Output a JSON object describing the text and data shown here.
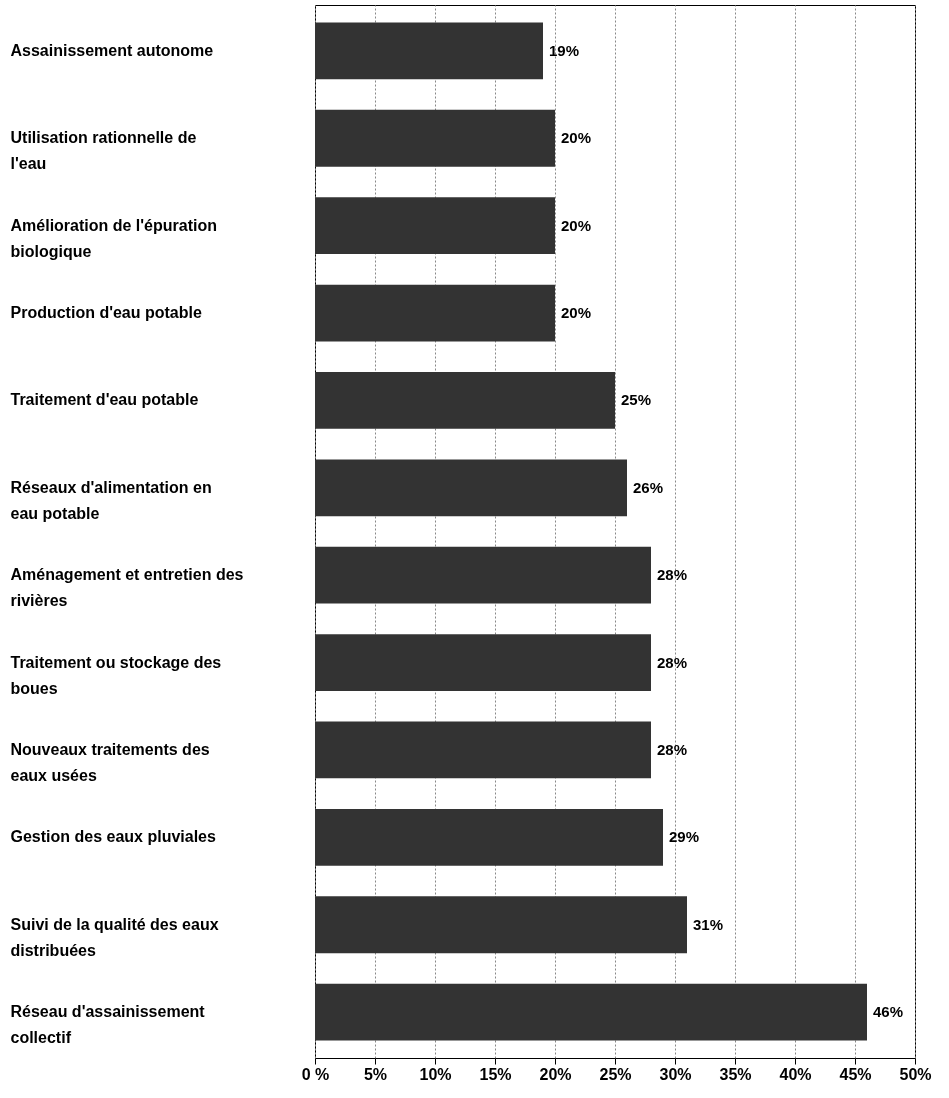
{
  "chart_data": {
    "type": "bar",
    "orientation": "horizontal",
    "categories": [
      "Assainissement autonome",
      "Utilisation rationnelle de l'eau",
      "Amélioration de l'épuration biologique",
      "Production d'eau potable",
      "Traitement d'eau potable",
      "Réseaux d'alimentation en eau potable",
      "Aménagement et entretien des rivières",
      "Traitement ou stockage des boues",
      "Nouveaux traitements des eaux usées",
      "Gestion des eaux pluviales",
      "Suivi de la qualité des eaux distribuées",
      "Réseau d'assainissement collectif"
    ],
    "values": [
      19,
      20,
      20,
      20,
      25,
      26,
      28,
      28,
      28,
      29,
      31,
      46
    ],
    "value_labels": [
      "19%",
      "20%",
      "20%",
      "20%",
      "25%",
      "26%",
      "28%",
      "28%",
      "28%",
      "29%",
      "31%",
      "46%"
    ],
    "color": "#333333",
    "xlim": [
      0,
      50
    ],
    "xticks": [
      {
        "value": 0,
        "label": "0 %"
      },
      {
        "value": 5,
        "label": "5%"
      },
      {
        "value": 10,
        "label": "10%"
      },
      {
        "value": 15,
        "label": "15%"
      },
      {
        "value": 20,
        "label": "20%"
      },
      {
        "value": 25,
        "label": "25%"
      },
      {
        "value": 30,
        "label": "30%"
      },
      {
        "value": 35,
        "label": "35%"
      },
      {
        "value": 40,
        "label": "40%"
      },
      {
        "value": 45,
        "label": "45%"
      },
      {
        "value": 50,
        "label": "50%"
      }
    ],
    "grid": "x"
  }
}
